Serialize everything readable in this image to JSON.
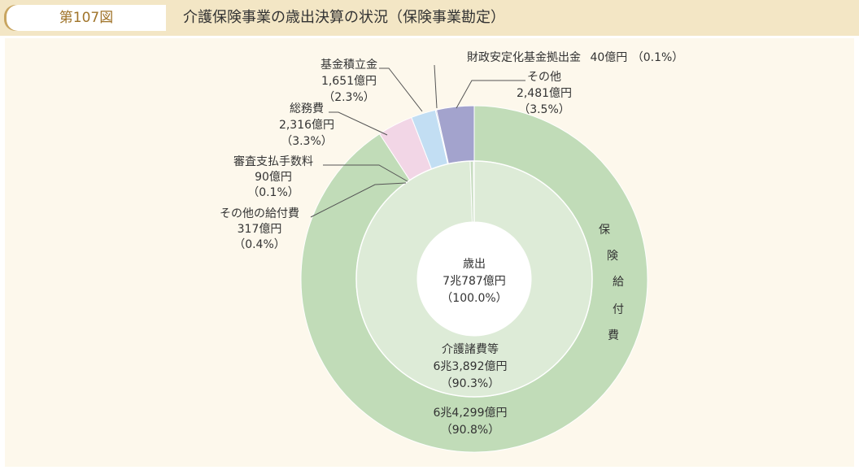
{
  "header": {
    "figure_label": "第107図",
    "title": "介護保険事業の歳出決算の状況（保険事業勘定）"
  },
  "chart_data": {
    "type": "pie",
    "title": "介護保険事業の歳出決算の状況（保険事業勘定）",
    "center": {
      "line1": "歳出",
      "line2": "7兆787億円",
      "line3": "（100.0%）"
    },
    "outer_ring": [
      {
        "name": "保険給付費",
        "amount": "6兆4,299億円",
        "pct_label": "（90.8%）",
        "percent": 90.8,
        "color": "#c1dcb8"
      },
      {
        "name": "総務費",
        "amount": "2,316億円",
        "pct_label": "（3.3%）",
        "percent": 3.3,
        "color": "#f2d6e6"
      },
      {
        "name": "基金積立金",
        "amount": "1,651億円",
        "pct_label": "（2.3%）",
        "percent": 2.3,
        "color": "#c2def3"
      },
      {
        "name": "財政安定化基金拠出金",
        "amount": "40億円",
        "pct_label": "（0.1%）",
        "percent": 0.1,
        "color": "#a9bcd8"
      },
      {
        "name": "その他",
        "amount": "2,481億円",
        "pct_label": "（3.5%）",
        "percent": 3.5,
        "color": "#a3a3cd"
      }
    ],
    "inner_ring": [
      {
        "name": "介護諸費等",
        "amount": "6兆3,892億円",
        "pct_label": "（90.3%）",
        "percent": 90.3,
        "color": "#ddebd7"
      },
      {
        "name": "その他の給付費",
        "amount": "317億円",
        "pct_label": "（0.4%）",
        "percent": 0.4,
        "color": "#c7dcc0"
      },
      {
        "name": "審査支払手数料",
        "amount": "90億円",
        "pct_label": "（0.1%）",
        "percent": 0.1,
        "color": "#bcd2b6"
      }
    ],
    "outer_vertical_label": [
      "保",
      "険",
      "給",
      "付",
      "費"
    ],
    "colors": {
      "line": "#555555",
      "stroke": "#ffffff",
      "text": "#333333"
    }
  }
}
